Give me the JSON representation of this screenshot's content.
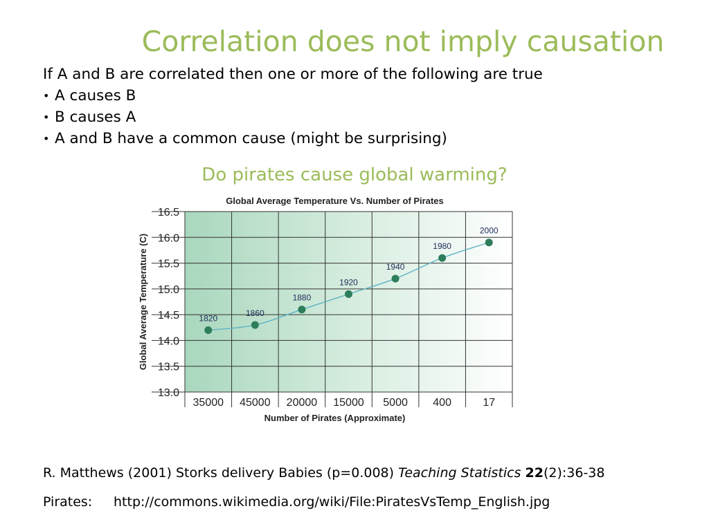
{
  "slide": {
    "title": "Correlation does not imply causation",
    "intro": "If A and B are correlated then one or more of the following are true",
    "bullets": [
      "A causes B",
      "B causes A",
      "A and B have a common cause (might be surprising)"
    ],
    "bullet_glyph": "•",
    "question": "Do pirates cause global warming?",
    "reference": {
      "authors": "R. Matthews (2001) Storks delivery Babies (p=0.008)",
      "journal": "Teaching Statistics",
      "volume": "22",
      "pages": "(2):36-38"
    },
    "pirates_label": "Pirates:",
    "pirates_url": "http://commons.wikimedia.org/wiki/File:PiratesVsTemp_English.jpg",
    "colors": {
      "accent": "#9bbb59",
      "point": "#2e7d5b",
      "line": "#5fb3c5"
    }
  },
  "chart_data": {
    "type": "line",
    "title": "Global Average Temperature Vs. Number of Pirates",
    "xlabel": "Number of Pirates (Approximate)",
    "ylabel": "Global Average Temperature (C)",
    "categories": [
      "35000",
      "45000",
      "20000",
      "15000",
      "5000",
      "400",
      "17"
    ],
    "values": [
      14.2,
      14.3,
      14.6,
      14.9,
      15.2,
      15.6,
      15.9
    ],
    "point_labels": [
      "1820",
      "1860",
      "1880",
      "1920",
      "1940",
      "1980",
      "2000"
    ],
    "yticks": [
      "13.0",
      "13.5",
      "14.0",
      "14.5",
      "15.0",
      "15.5",
      "16.0",
      "16.5"
    ],
    "ylim": [
      13.0,
      16.5
    ],
    "grid": true
  }
}
